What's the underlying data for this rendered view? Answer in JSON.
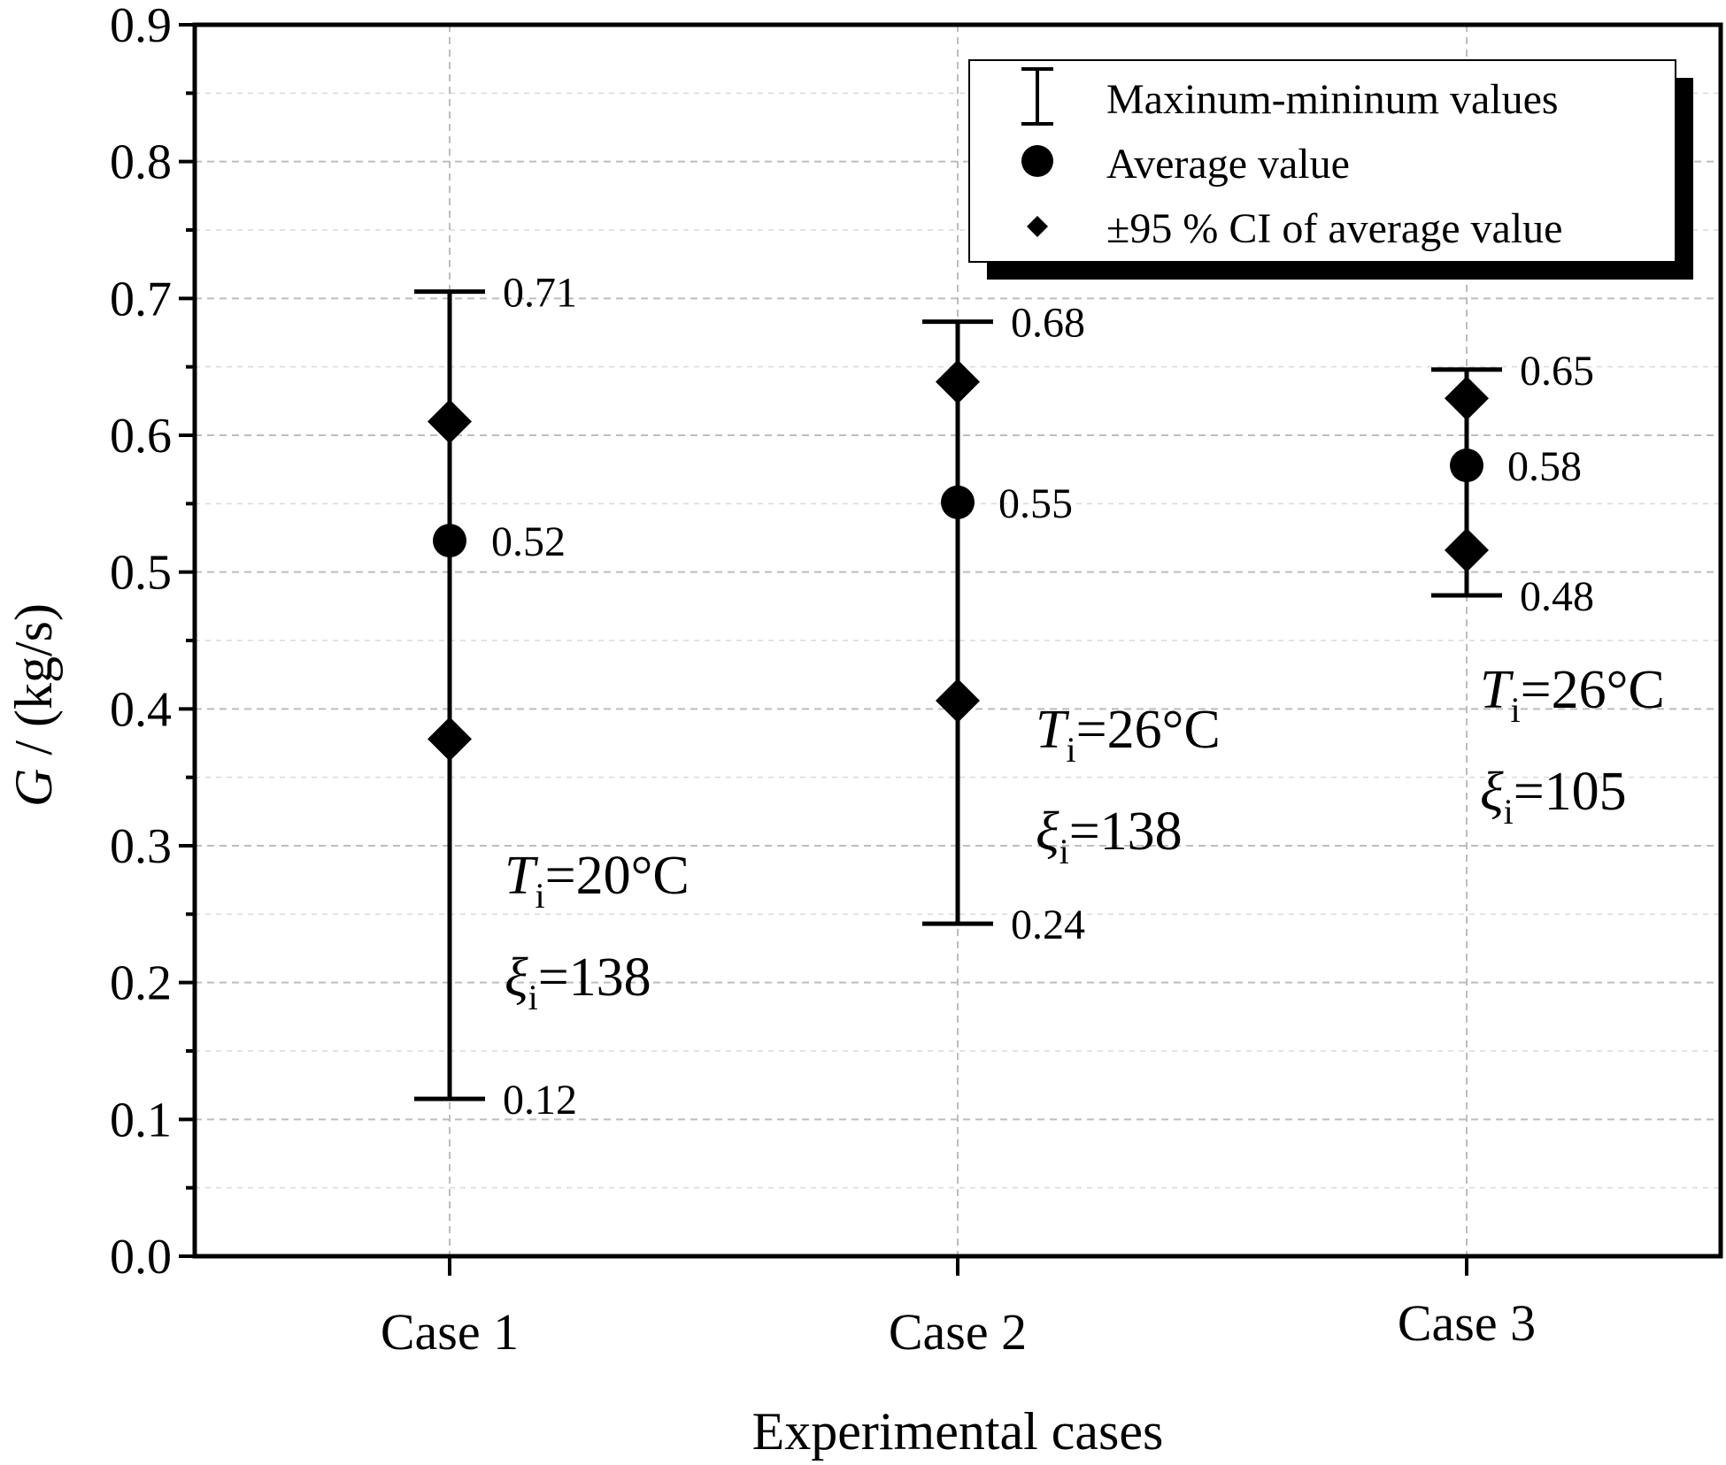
{
  "chart_data": {
    "type": "scatter",
    "xlabel": "Experimental cases",
    "ylabel_italic": "G",
    "ylabel_rest": " / (kg/s)",
    "ylim": [
      0.0,
      0.9
    ],
    "y_ticks": [
      "0.0",
      "0.1",
      "0.2",
      "0.3",
      "0.4",
      "0.5",
      "0.6",
      "0.7",
      "0.8",
      "0.9"
    ],
    "categories": [
      "Case 1",
      "Case 2",
      "Case 3"
    ],
    "grid": true,
    "legend_position": "top-right",
    "legend": [
      {
        "symbol": "range",
        "label": "Maxinum-mininum values"
      },
      {
        "symbol": "circle",
        "label": "Average value"
      },
      {
        "symbol": "diamond",
        "label": "±95 % CI of average value"
      }
    ],
    "series": [
      {
        "category": "Case 1",
        "max": 0.705,
        "min": 0.115,
        "mean": 0.523,
        "ci_upper": 0.61,
        "ci_lower": 0.378,
        "max_label": "0.71",
        "mean_label": "0.52",
        "min_label": "0.12",
        "condition": {
          "T_var": "T",
          "T_sub": "i",
          "T_value": "=20°C",
          "xi_var": "ξ",
          "xi_sub": "i",
          "xi_value": "=138"
        }
      },
      {
        "category": "Case 2",
        "max": 0.683,
        "min": 0.243,
        "mean": 0.551,
        "ci_upper": 0.639,
        "ci_lower": 0.406,
        "max_label": "0.68",
        "mean_label": "0.55",
        "min_label": "0.24",
        "condition": {
          "T_var": "T",
          "T_sub": "i",
          "T_value": "=26°C",
          "xi_var": "ξ",
          "xi_sub": "i",
          "xi_value": "=138"
        }
      },
      {
        "category": "Case 3",
        "max": 0.648,
        "min": 0.483,
        "mean": 0.578,
        "ci_upper": 0.627,
        "ci_lower": 0.516,
        "max_label": "0.65",
        "mean_label": "0.58",
        "min_label": "0.48",
        "condition": {
          "T_var": "T",
          "T_sub": "i",
          "T_value": "=26°C",
          "xi_var": "ξ",
          "xi_sub": "i",
          "xi_value": "=105"
        }
      }
    ]
  }
}
